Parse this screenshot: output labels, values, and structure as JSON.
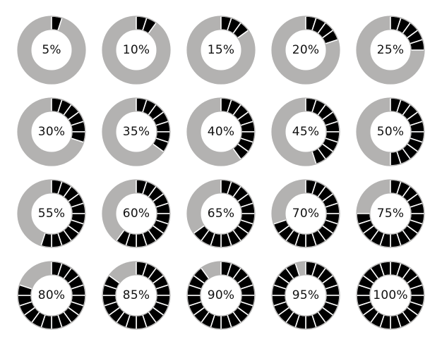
{
  "colors": {
    "filled": "#000000",
    "empty": "#b3b2b1",
    "separator": "#ffffff",
    "background": "#ffffff",
    "text": "#111111"
  },
  "rings": [
    {
      "percent": 5,
      "label": "5%"
    },
    {
      "percent": 10,
      "label": "10%"
    },
    {
      "percent": 15,
      "label": "15%"
    },
    {
      "percent": 20,
      "label": "20%"
    },
    {
      "percent": 25,
      "label": "25%"
    },
    {
      "percent": 30,
      "label": "30%"
    },
    {
      "percent": 35,
      "label": "35%"
    },
    {
      "percent": 40,
      "label": "40%"
    },
    {
      "percent": 45,
      "label": "45%"
    },
    {
      "percent": 50,
      "label": "50%"
    },
    {
      "percent": 55,
      "label": "55%"
    },
    {
      "percent": 60,
      "label": "60%"
    },
    {
      "percent": 65,
      "label": "65%"
    },
    {
      "percent": 70,
      "label": "70%"
    },
    {
      "percent": 75,
      "label": "75%"
    },
    {
      "percent": 80,
      "label": "80%"
    },
    {
      "percent": 85,
      "label": "85%"
    },
    {
      "percent": 90,
      "label": "90%"
    },
    {
      "percent": 95,
      "label": "95%"
    },
    {
      "percent": 100,
      "label": "100%"
    }
  ]
}
